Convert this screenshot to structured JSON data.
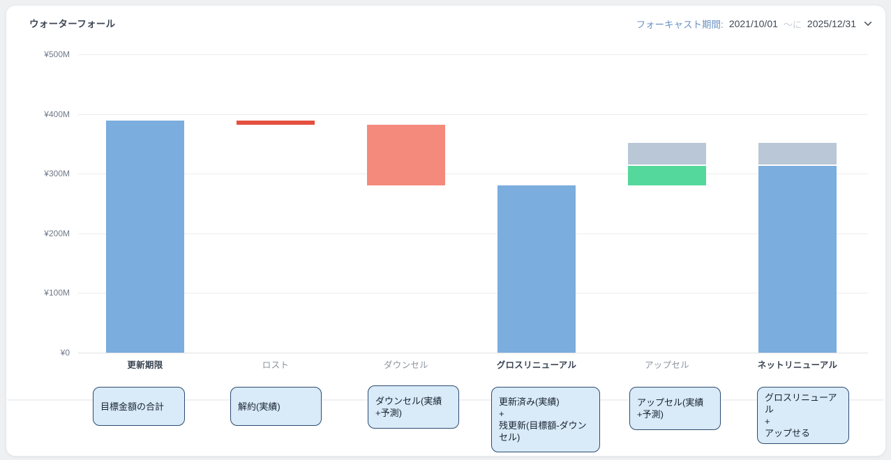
{
  "page": {
    "title": "ウォーターフォール"
  },
  "forecast_picker": {
    "label": "フォーキャスト期間:",
    "start_date": "2021/10/01",
    "separator": "〜に",
    "end_date": "2025/12/31"
  },
  "colors": {
    "blue": "#7badde",
    "salmon": "#f48a7c",
    "red": "#e4503f",
    "green": "#54d89c",
    "grayblue": "#b9c7d7",
    "accent_label": "#6a92c4",
    "callout_fill": "#d9eaf8",
    "callout_border": "#2b4a6f",
    "gridline": "#ececec"
  },
  "chart_data": {
    "type": "bar",
    "subtype": "waterfall",
    "title": "ウォーターフォール",
    "xlabel": "",
    "ylabel": "",
    "unit": "millions JPY (M)",
    "ylim": [
      0,
      500
    ],
    "grid": true,
    "legend": false,
    "y_ticks": [
      {
        "value": 0,
        "label": "¥0"
      },
      {
        "value": 100,
        "label": "¥100M"
      },
      {
        "value": 200,
        "label": "¥200M"
      },
      {
        "value": 300,
        "label": "¥300M"
      },
      {
        "value": 400,
        "label": "¥400M"
      },
      {
        "value": 500,
        "label": "¥500M"
      }
    ],
    "categories": [
      {
        "key": "renewal-due",
        "label": "更新期限",
        "bold": true,
        "note": "目標金額の合計",
        "segments": [
          {
            "from": 0,
            "to": 389,
            "color": "blue"
          }
        ]
      },
      {
        "key": "lost",
        "label": "ロスト",
        "bold": false,
        "note": "解約(実績)",
        "segments": [
          {
            "from": 382,
            "to": 389,
            "color": "red"
          }
        ]
      },
      {
        "key": "downsell",
        "label": "ダウンセル",
        "bold": false,
        "note": "ダウンセル(実績+予測)",
        "segments": [
          {
            "from": 280,
            "to": 382,
            "color": "salmon"
          }
        ]
      },
      {
        "key": "gross-renewal",
        "label": "グロスリニューアル",
        "bold": true,
        "note": "更新済み(実績)\n+\n残更新(目標額-ダウンセル)",
        "segments": [
          {
            "from": 0,
            "to": 280,
            "color": "blue"
          }
        ]
      },
      {
        "key": "upsell",
        "label": "アップセル",
        "bold": false,
        "note": "アップセル(実績+予測)",
        "segments": [
          {
            "from": 280,
            "to": 313,
            "color": "green"
          },
          {
            "from": 313,
            "to": 352,
            "color": "grayblue"
          }
        ]
      },
      {
        "key": "net-renewal",
        "label": "ネットリニューアル",
        "bold": true,
        "note": "グロスリニューアル\n+\nアップせる",
        "segments": [
          {
            "from": 0,
            "to": 313,
            "color": "blue"
          },
          {
            "from": 313,
            "to": 352,
            "color": "grayblue"
          }
        ]
      }
    ]
  }
}
